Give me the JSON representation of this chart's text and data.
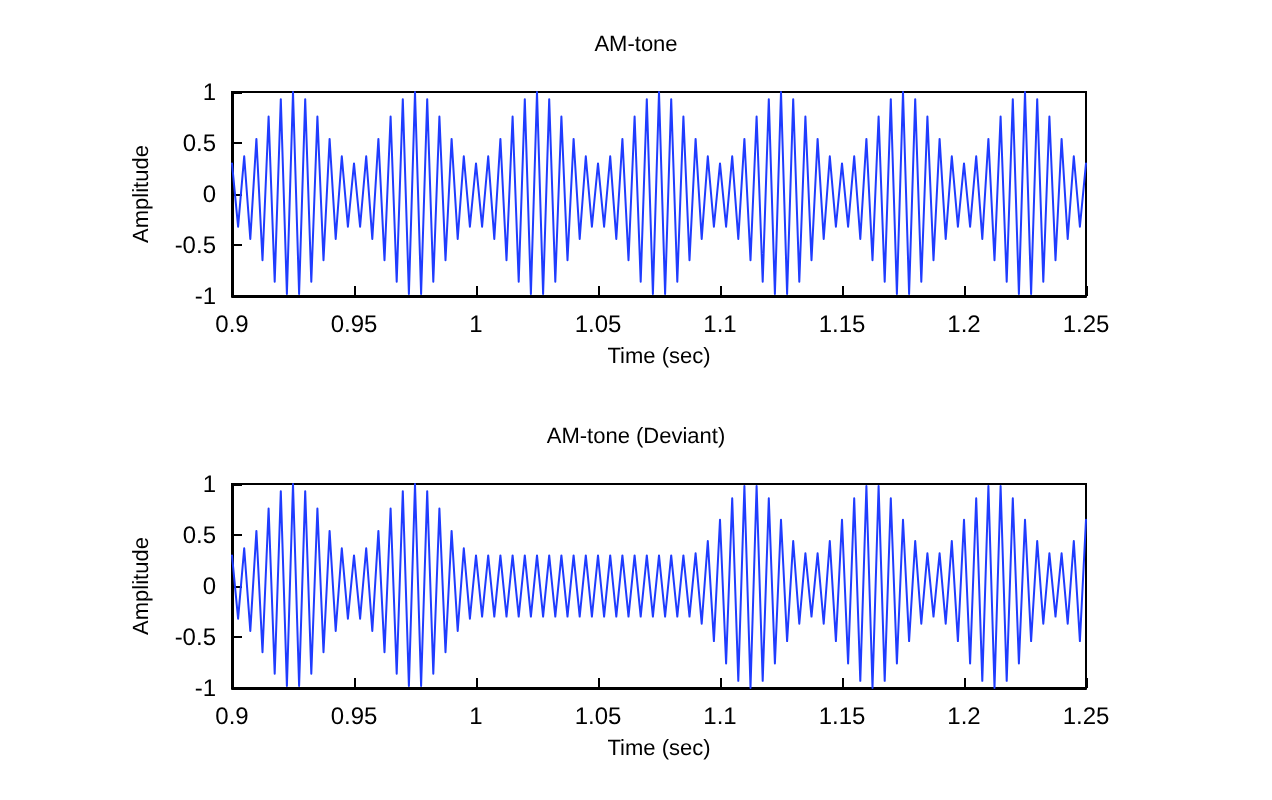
{
  "chart_data": [
    {
      "type": "line",
      "title": "AM-tone",
      "xlabel": "Time (sec)",
      "ylabel": "Amplitude",
      "x": [
        0.9,
        0.9025,
        0.905,
        0.9075,
        0.91,
        0.9125,
        0.915,
        0.9175,
        0.92,
        0.9225,
        0.925,
        0.9275,
        0.93,
        0.9325,
        0.935,
        0.9375,
        0.94,
        0.9425,
        0.945,
        0.9475,
        0.95,
        0.9525,
        0.955,
        0.9575,
        0.96,
        0.9625,
        0.965,
        0.9675,
        0.97,
        0.9725,
        0.975,
        0.9775,
        0.98,
        0.9825,
        0.985,
        0.9875,
        0.99,
        0.9925,
        0.995,
        0.9975,
        1,
        1.0025,
        1.005,
        1.0075,
        1.01,
        1.0125,
        1.015,
        1.0175,
        1.02,
        1.0225,
        1.025,
        1.0275,
        1.03,
        1.0325,
        1.035,
        1.0375,
        1.04,
        1.0425,
        1.045,
        1.0475,
        1.05,
        1.0525,
        1.055,
        1.0575,
        1.06,
        1.0625,
        1.065,
        1.0675,
        1.07,
        1.0725,
        1.075,
        1.0775,
        1.08,
        1.0825,
        1.085,
        1.0875,
        1.09,
        1.0925,
        1.095,
        1.0975,
        1.1,
        1.1025,
        1.105,
        1.1075,
        1.11,
        1.1125,
        1.115,
        1.1175,
        1.12,
        1.1225,
        1.125,
        1.1275,
        1.13,
        1.1325,
        1.135,
        1.1375,
        1.14,
        1.1425,
        1.145,
        1.1475,
        1.15,
        1.1525,
        1.155,
        1.1575,
        1.16,
        1.1625,
        1.165,
        1.1675,
        1.17,
        1.1725,
        1.175,
        1.1775,
        1.18,
        1.1825,
        1.185,
        1.1875,
        1.19,
        1.1925,
        1.195,
        1.1975,
        1.2,
        1.2025,
        1.205,
        1.2075,
        1.21,
        1.2125,
        1.215,
        1.2175,
        1.22,
        1.2225,
        1.225,
        1.2275,
        1.23,
        1.2325,
        1.235,
        1.2375,
        1.24,
        1.2425,
        1.245,
        1.2475,
        1.25
      ],
      "series": [
        {
          "color": "#1f3cff",
          "values": [
            0.3,
            -0.32,
            0.37,
            -0.44,
            0.54,
            -0.65,
            0.76,
            -0.86,
            0.93,
            -0.98,
            1.0,
            -0.98,
            0.93,
            -0.86,
            0.76,
            -0.65,
            0.54,
            -0.44,
            0.37,
            -0.32,
            0.3,
            -0.32,
            0.37,
            -0.44,
            0.54,
            -0.65,
            0.76,
            -0.86,
            0.93,
            -0.98,
            1.0,
            -0.98,
            0.93,
            -0.86,
            0.76,
            -0.65,
            0.54,
            -0.44,
            0.37,
            -0.32,
            0.3,
            -0.32,
            0.37,
            -0.44,
            0.54,
            -0.65,
            0.76,
            -0.86,
            0.93,
            -0.98,
            1.0,
            -0.98,
            0.93,
            -0.86,
            0.76,
            -0.65,
            0.54,
            -0.44,
            0.37,
            -0.32,
            0.3,
            -0.32,
            0.37,
            -0.44,
            0.54,
            -0.65,
            0.76,
            -0.86,
            0.93,
            -0.98,
            1.0,
            -0.98,
            0.93,
            -0.86,
            0.76,
            -0.65,
            0.54,
            -0.44,
            0.37,
            -0.32,
            0.3,
            -0.32,
            0.37,
            -0.44,
            0.54,
            -0.65,
            0.76,
            -0.86,
            0.93,
            -0.98,
            1.0,
            -0.98,
            0.93,
            -0.86,
            0.76,
            -0.65,
            0.54,
            -0.44,
            0.37,
            -0.32,
            0.3,
            -0.32,
            0.37,
            -0.44,
            0.54,
            -0.65,
            0.76,
            -0.86,
            0.93,
            -0.98,
            1.0,
            -0.98,
            0.93,
            -0.86,
            0.76,
            -0.65,
            0.54,
            -0.44,
            0.37,
            -0.32,
            0.3,
            -0.32,
            0.37,
            -0.44,
            0.54,
            -0.65,
            0.76,
            -0.86,
            0.93,
            -0.98,
            1.0,
            -0.98,
            0.93,
            -0.86,
            0.76,
            -0.65,
            0.54,
            -0.44,
            0.37,
            -0.32,
            0.3
          ]
        }
      ],
      "xlim": [
        0.9,
        1.25
      ],
      "xticks": [
        0.9,
        0.95,
        1,
        1.05,
        1.1,
        1.15,
        1.2,
        1.25
      ],
      "ylim": [
        -1,
        1
      ],
      "yticks": [
        -1,
        -0.5,
        0,
        0.5,
        1
      ],
      "grid": false,
      "marker": "none",
      "line_style": "solid"
    },
    {
      "type": "line",
      "title": "AM-tone (Deviant)",
      "xlabel": "Time (sec)",
      "ylabel": "Amplitude",
      "x": [
        0.9,
        0.9025,
        0.905,
        0.9075,
        0.91,
        0.9125,
        0.915,
        0.9175,
        0.92,
        0.9225,
        0.925,
        0.9275,
        0.93,
        0.9325,
        0.935,
        0.9375,
        0.94,
        0.9425,
        0.945,
        0.9475,
        0.95,
        0.9525,
        0.955,
        0.9575,
        0.96,
        0.9625,
        0.965,
        0.9675,
        0.97,
        0.9725,
        0.975,
        0.9775,
        0.98,
        0.9825,
        0.985,
        0.9875,
        0.99,
        0.9925,
        0.995,
        0.9975,
        1,
        1.0025,
        1.005,
        1.0075,
        1.01,
        1.0125,
        1.015,
        1.0175,
        1.02,
        1.0225,
        1.025,
        1.0275,
        1.03,
        1.0325,
        1.035,
        1.0375,
        1.04,
        1.0425,
        1.045,
        1.0475,
        1.05,
        1.0525,
        1.055,
        1.0575,
        1.06,
        1.0625,
        1.065,
        1.0675,
        1.07,
        1.0725,
        1.075,
        1.0775,
        1.08,
        1.0825,
        1.085,
        1.0875,
        1.09,
        1.0925,
        1.095,
        1.0975,
        1.1,
        1.1025,
        1.105,
        1.1075,
        1.11,
        1.1125,
        1.115,
        1.1175,
        1.12,
        1.1225,
        1.125,
        1.1275,
        1.13,
        1.1325,
        1.135,
        1.1375,
        1.14,
        1.1425,
        1.145,
        1.1475,
        1.15,
        1.1525,
        1.155,
        1.1575,
        1.16,
        1.1625,
        1.165,
        1.1675,
        1.17,
        1.1725,
        1.175,
        1.1775,
        1.18,
        1.1825,
        1.185,
        1.1875,
        1.19,
        1.1925,
        1.195,
        1.1975,
        1.2,
        1.2025,
        1.205,
        1.2075,
        1.21,
        1.2125,
        1.215,
        1.2175,
        1.22,
        1.2225,
        1.225,
        1.2275,
        1.23,
        1.2325,
        1.235,
        1.2375,
        1.24,
        1.2425,
        1.245,
        1.2475,
        1.25
      ],
      "series": [
        {
          "color": "#1f3cff",
          "values": [
            0.3,
            -0.32,
            0.37,
            -0.44,
            0.54,
            -0.65,
            0.76,
            -0.86,
            0.93,
            -0.98,
            1.0,
            -0.98,
            0.93,
            -0.86,
            0.76,
            -0.65,
            0.54,
            -0.44,
            0.37,
            -0.32,
            0.3,
            -0.32,
            0.37,
            -0.44,
            0.54,
            -0.65,
            0.76,
            -0.86,
            0.93,
            -0.98,
            1.0,
            -0.98,
            0.93,
            -0.86,
            0.76,
            -0.65,
            0.54,
            -0.44,
            0.37,
            -0.32,
            0.3,
            -0.3,
            0.3,
            -0.3,
            0.3,
            -0.3,
            0.3,
            -0.3,
            0.3,
            -0.3,
            0.3,
            -0.3,
            0.3,
            -0.3,
            0.3,
            -0.3,
            0.3,
            -0.3,
            0.3,
            -0.3,
            0.3,
            -0.3,
            0.3,
            -0.3,
            0.3,
            -0.3,
            0.3,
            -0.3,
            0.3,
            -0.3,
            0.3,
            -0.3,
            0.3,
            -0.3,
            0.3,
            -0.3,
            0.32,
            -0.37,
            0.44,
            -0.54,
            0.65,
            -0.76,
            0.86,
            -0.93,
            0.98,
            -1.0,
            0.98,
            -0.93,
            0.86,
            -0.76,
            0.65,
            -0.54,
            0.44,
            -0.37,
            0.32,
            -0.3,
            0.32,
            -0.37,
            0.44,
            -0.54,
            0.65,
            -0.76,
            0.86,
            -0.93,
            0.98,
            -1.0,
            0.98,
            -0.93,
            0.86,
            -0.76,
            0.65,
            -0.54,
            0.44,
            -0.37,
            0.32,
            -0.3,
            0.32,
            -0.37,
            0.44,
            -0.54,
            0.65,
            -0.76,
            0.86,
            -0.93,
            0.98,
            -1.0,
            0.98,
            -0.93,
            0.86,
            -0.76,
            0.65,
            -0.54,
            0.44,
            -0.37,
            0.32,
            -0.3,
            0.32,
            -0.37,
            0.44,
            -0.54,
            0.65
          ]
        }
      ],
      "xlim": [
        0.9,
        1.25
      ],
      "xticks": [
        0.9,
        0.95,
        1,
        1.05,
        1.1,
        1.15,
        1.2,
        1.25
      ],
      "ylim": [
        -1,
        1
      ],
      "yticks": [
        -1,
        -0.5,
        0,
        0.5,
        1
      ],
      "grid": false,
      "marker": "none",
      "line_style": "solid"
    }
  ]
}
